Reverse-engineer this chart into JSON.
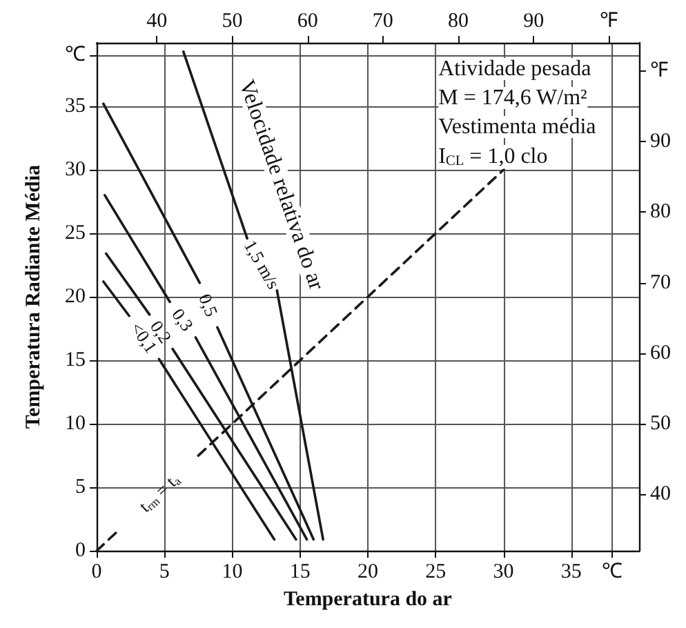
{
  "chart_data": {
    "type": "line",
    "xlabel": "Temperatura do ar",
    "ylabel": "Temperatura Radiante Média",
    "annotations": [
      "Atividade pesada",
      "M = 174,6 W/m²",
      "Vestimenta média",
      "I$_{CL}$ = 1,0 clo",
      "Velocidade relativa do ar"
    ],
    "series": [
      {
        "name": "<0,1",
        "color": "#1a1a1a",
        "x": [
          0.5,
          2.4,
          3.5,
          4.6,
          13.1
        ],
        "values": [
          21.2,
          18.5,
          null,
          15.1,
          0.9
        ]
      },
      {
        "name": "0,2",
        "color": "#1a1a1a",
        "x": [
          0.7,
          3.9,
          4.8,
          5.6,
          14.7
        ],
        "values": [
          23.4,
          18.6,
          null,
          15.9,
          0.9
        ]
      },
      {
        "name": "0,3",
        "color": "#1a1a1a",
        "x": [
          0.6,
          5.4,
          6.3,
          7.3,
          15.5
        ],
        "values": [
          28.0,
          19.6,
          null,
          16.8,
          0.9
        ]
      },
      {
        "name": "0,5",
        "color": "#1a1a1a",
        "x": [
          0.5,
          7.6,
          8.3,
          8.9,
          16.0
        ],
        "values": [
          35.2,
          21.1,
          null,
          17.6,
          0.9
        ]
      },
      {
        "name": "1,5 m/s",
        "color": "#1a1a1a",
        "x": [
          6.4,
          11.1,
          12.2,
          13.3,
          16.7
        ],
        "values": [
          39.3,
          24.6,
          null,
          20.5,
          0.9
        ]
      },
      {
        "name": "t$_{rm}$ = t$_{a}$",
        "color": "#1a1a1a",
        "line_style": "dashed",
        "x": [
          0,
          1.7,
          4.6,
          7.5,
          30
        ],
        "values": [
          0,
          1.7,
          null,
          7.5,
          30
        ]
      }
    ],
    "xlim": [
      0,
      40
    ],
    "xticks": [
      0,
      5,
      10,
      15,
      20,
      25,
      30,
      35,
      {
        "value": 38,
        "label": "℃"
      }
    ],
    "ylim": [
      0,
      40
    ],
    "yticks": [
      0,
      5,
      10,
      15,
      20,
      25,
      30,
      35,
      {
        "value": 39,
        "label": "℃"
      }
    ],
    "x2lim": [
      32,
      104
    ],
    "x2ticks": [
      40,
      50,
      60,
      70,
      80,
      90,
      {
        "value": 100,
        "label": "℉"
      }
    ],
    "y2lim": [
      32,
      104
    ],
    "y2ticks": [
      40,
      50,
      60,
      70,
      80,
      90,
      {
        "value": 100,
        "label": "℉"
      }
    ],
    "grid": true,
    "legend": false,
    "marker": "none",
    "line_style": "solid"
  }
}
